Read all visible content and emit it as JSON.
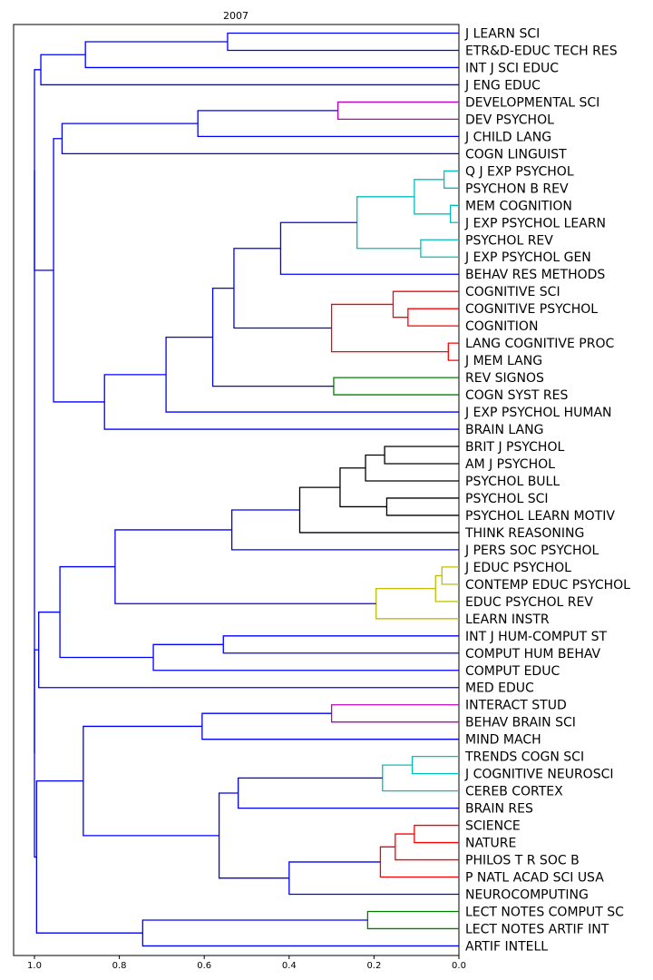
{
  "chart_data": {
    "type": "dendrogram",
    "title": "2007",
    "orientation": "left",
    "xlim": [
      1.0,
      0.0
    ],
    "xticks": [
      "1.0",
      "0.8",
      "0.6",
      "0.4",
      "0.2",
      "0.0"
    ],
    "colors": {
      "blue": "#0000ff",
      "magenta": "#bf00bf",
      "cyan": "#00bfbf",
      "red": "#ff0000",
      "green": "#008000",
      "black": "#000000",
      "yellow": "#bfbf00"
    },
    "leaves": [
      "J LEARN SCI",
      "ETR&D-EDUC TECH RES",
      "INT J SCI EDUC",
      "J ENG EDUC",
      "DEVELOPMENTAL SCI",
      "DEV PSYCHOL",
      "J CHILD LANG",
      "COGN LINGUIST",
      "Q J EXP PSYCHOL",
      "PSYCHON B REV",
      "MEM COGNITION",
      "J EXP PSYCHOL LEARN",
      "PSYCHOL REV",
      "J EXP PSYCHOL GEN",
      "BEHAV RES METHODS",
      "COGNITIVE SCI",
      "COGNITIVE PSYCHOL",
      "COGNITION",
      "LANG COGNITIVE PROC",
      "J MEM LANG",
      "REV SIGNOS",
      "COGN SYST RES",
      "J EXP PSYCHOL HUMAN",
      "BRAIN LANG",
      "BRIT J PSYCHOL",
      "AM J PSYCHOL",
      "PSYCHOL BULL",
      "PSYCHOL SCI",
      "PSYCHOL LEARN MOTIV",
      "THINK REASONING",
      "J PERS SOC PSYCHOL",
      "J EDUC PSYCHOL",
      "CONTEMP EDUC PSYCHOL",
      "EDUC PSYCHOL REV",
      "LEARN INSTR",
      "INT J HUM-COMPUT ST",
      "COMPUT HUM BEHAV",
      "COMPUT EDUC",
      "MED EDUC",
      "INTERACT STUD",
      "BEHAV BRAIN SCI",
      "MIND MACH",
      "TRENDS COGN SCI",
      "J COGNITIVE NEUROSCI",
      "CEREB CORTEX",
      "BRAIN RES",
      "SCIENCE",
      "NATURE",
      "PHILOS T R SOC B",
      "P NATL ACAD SCI USA",
      "NEUROCOMPUTING",
      "LECT NOTES COMPUT SC",
      "LECT NOTES ARTIF INT",
      "ARTIF INTELL"
    ],
    "merges": [
      {
        "id": "A1",
        "children": [
          "L0",
          "L1"
        ],
        "height": 0.545,
        "color": "blue"
      },
      {
        "id": "A2",
        "children": [
          "A1",
          "L2"
        ],
        "height": 0.88,
        "color": "blue"
      },
      {
        "id": "A3",
        "children": [
          "A2",
          "L3"
        ],
        "height": 0.985,
        "color": "blue"
      },
      {
        "id": "A4",
        "children": [
          "L4",
          "L5"
        ],
        "height": 0.285,
        "color": "magenta"
      },
      {
        "id": "A5",
        "children": [
          "A4",
          "L6"
        ],
        "height": 0.615,
        "color": "blue"
      },
      {
        "id": "A6",
        "children": [
          "A5",
          "L7"
        ],
        "height": 0.935,
        "color": "blue"
      },
      {
        "id": "B1",
        "children": [
          "L8",
          "L9"
        ],
        "height": 0.035,
        "color": "cyan"
      },
      {
        "id": "B2",
        "children": [
          "L10",
          "L11"
        ],
        "height": 0.02,
        "color": "cyan"
      },
      {
        "id": "B3",
        "children": [
          "B1",
          "B2"
        ],
        "height": 0.105,
        "color": "cyan"
      },
      {
        "id": "B4",
        "children": [
          "L12",
          "L13"
        ],
        "height": 0.09,
        "color": "cyan"
      },
      {
        "id": "B5",
        "children": [
          "B3",
          "B4"
        ],
        "height": 0.24,
        "color": "cyan"
      },
      {
        "id": "B6",
        "children": [
          "B5",
          "L14"
        ],
        "height": 0.42,
        "color": "blue"
      },
      {
        "id": "C1",
        "children": [
          "L16",
          "L17"
        ],
        "height": 0.12,
        "color": "red"
      },
      {
        "id": "C2",
        "children": [
          "L15",
          "C1"
        ],
        "height": 0.155,
        "color": "red"
      },
      {
        "id": "C3",
        "children": [
          "L18",
          "L19"
        ],
        "height": 0.025,
        "color": "red"
      },
      {
        "id": "C4",
        "children": [
          "C2",
          "C3"
        ],
        "height": 0.3,
        "color": "red"
      },
      {
        "id": "C5",
        "children": [
          "B6",
          "C4"
        ],
        "height": 0.53,
        "color": "blue"
      },
      {
        "id": "D1",
        "children": [
          "L20",
          "L21"
        ],
        "height": 0.295,
        "color": "green"
      },
      {
        "id": "D2",
        "children": [
          "C5",
          "D1"
        ],
        "height": 0.58,
        "color": "blue"
      },
      {
        "id": "D3",
        "children": [
          "D2",
          "L22"
        ],
        "height": 0.69,
        "color": "blue"
      },
      {
        "id": "D4",
        "children": [
          "D3",
          "L23"
        ],
        "height": 0.835,
        "color": "blue"
      },
      {
        "id": "E1",
        "children": [
          "A6",
          "D4"
        ],
        "height": 0.955,
        "color": "blue"
      },
      {
        "id": "E2",
        "children": [
          "A3",
          "E1"
        ],
        "height": 1.0,
        "color": "blue"
      },
      {
        "id": "F1",
        "children": [
          "L24",
          "L25"
        ],
        "height": 0.175,
        "color": "black"
      },
      {
        "id": "F2",
        "children": [
          "F1",
          "L26"
        ],
        "height": 0.22,
        "color": "black"
      },
      {
        "id": "F3",
        "children": [
          "L27",
          "L28"
        ],
        "height": 0.17,
        "color": "black"
      },
      {
        "id": "F4",
        "children": [
          "F2",
          "F3"
        ],
        "height": 0.28,
        "color": "black"
      },
      {
        "id": "F5",
        "children": [
          "F4",
          "L29"
        ],
        "height": 0.375,
        "color": "black"
      },
      {
        "id": "F6",
        "children": [
          "F5",
          "L30"
        ],
        "height": 0.535,
        "color": "blue"
      },
      {
        "id": "G1",
        "children": [
          "L31",
          "L32"
        ],
        "height": 0.04,
        "color": "yellow"
      },
      {
        "id": "G2",
        "children": [
          "G1",
          "L33"
        ],
        "height": 0.055,
        "color": "yellow"
      },
      {
        "id": "G3",
        "children": [
          "G2",
          "L34"
        ],
        "height": 0.195,
        "color": "yellow"
      },
      {
        "id": "G4",
        "children": [
          "F6",
          "G3"
        ],
        "height": 0.81,
        "color": "blue"
      },
      {
        "id": "H1",
        "children": [
          "L35",
          "L36"
        ],
        "height": 0.555,
        "color": "blue"
      },
      {
        "id": "H2",
        "children": [
          "H1",
          "L37"
        ],
        "height": 0.72,
        "color": "blue"
      },
      {
        "id": "H3",
        "children": [
          "G4",
          "H2"
        ],
        "height": 0.94,
        "color": "blue"
      },
      {
        "id": "H4",
        "children": [
          "H3",
          "L38"
        ],
        "height": 0.99,
        "color": "blue"
      },
      {
        "id": "I1",
        "children": [
          "L39",
          "L40"
        ],
        "height": 0.3,
        "color": "magenta"
      },
      {
        "id": "I2",
        "children": [
          "I1",
          "L41"
        ],
        "height": 0.605,
        "color": "blue"
      },
      {
        "id": "J1",
        "children": [
          "L42",
          "L43"
        ],
        "height": 0.11,
        "color": "cyan"
      },
      {
        "id": "J2",
        "children": [
          "J1",
          "L44"
        ],
        "height": 0.18,
        "color": "cyan"
      },
      {
        "id": "J3",
        "children": [
          "J2",
          "L45"
        ],
        "height": 0.52,
        "color": "blue"
      },
      {
        "id": "K1",
        "children": [
          "L46",
          "L47"
        ],
        "height": 0.105,
        "color": "red"
      },
      {
        "id": "K2",
        "children": [
          "K1",
          "L48"
        ],
        "height": 0.15,
        "color": "red"
      },
      {
        "id": "K3",
        "children": [
          "K2",
          "L49"
        ],
        "height": 0.185,
        "color": "red"
      },
      {
        "id": "K4",
        "children": [
          "K3",
          "L50"
        ],
        "height": 0.4,
        "color": "blue"
      },
      {
        "id": "K5",
        "children": [
          "J3",
          "K4"
        ],
        "height": 0.565,
        "color": "blue"
      },
      {
        "id": "K6",
        "children": [
          "I2",
          "K5"
        ],
        "height": 0.885,
        "color": "blue"
      },
      {
        "id": "M1",
        "children": [
          "L51",
          "L52"
        ],
        "height": 0.215,
        "color": "green"
      },
      {
        "id": "M2",
        "children": [
          "M1",
          "L53"
        ],
        "height": 0.745,
        "color": "blue"
      },
      {
        "id": "M3",
        "children": [
          "K6",
          "M2"
        ],
        "height": 0.995,
        "color": "blue"
      },
      {
        "id": "N1",
        "children": [
          "H4",
          "M3"
        ],
        "height": 1.0,
        "color": "blue"
      },
      {
        "id": "R",
        "children": [
          "E2",
          "N1"
        ],
        "height": 1.0,
        "color": "blue"
      }
    ]
  }
}
